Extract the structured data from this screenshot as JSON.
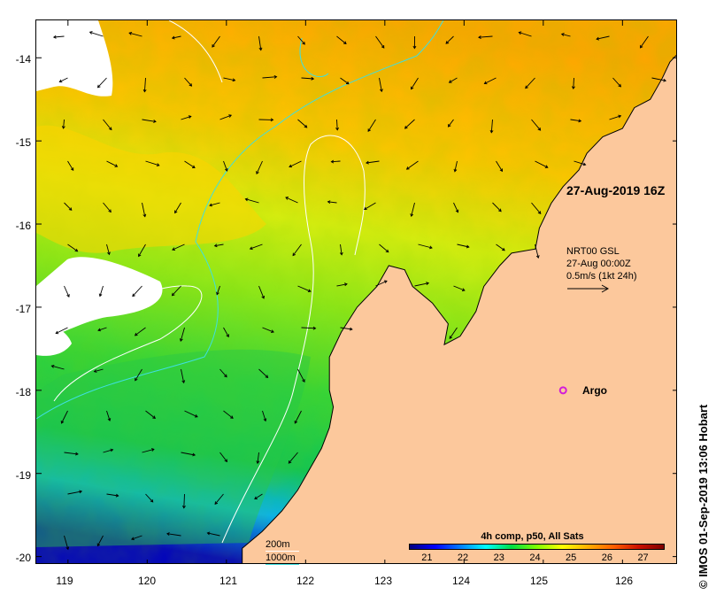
{
  "map": {
    "lon_range": [
      118.6,
      126.7
    ],
    "lat_range": [
      -20.1,
      -13.55
    ],
    "lat_ticks": [
      -14,
      -15,
      -16,
      -17,
      -18,
      -19,
      -20
    ],
    "lat_tick_labels": [
      "-14",
      "-15",
      "-16",
      "-17",
      "-18",
      "-19",
      "-20"
    ],
    "lon_ticks": [
      119,
      120,
      121,
      122,
      123,
      124,
      125,
      126
    ],
    "lon_tick_labels": [
      "119",
      "120",
      "121",
      "122",
      "123",
      "124",
      "125",
      "126"
    ],
    "land_color": "#fcc89c",
    "iso200_color": "#ffffff",
    "iso1000_color": "#3fdfe0",
    "argo_color": "#d21cd9",
    "argo_position": [
      125.25,
      -18.0
    ]
  },
  "annotations": {
    "timestamp": "27-Aug-2019 16Z",
    "current_product": "NRT00 GSL",
    "current_time": "27-Aug 00:00Z",
    "current_scale": "0.5m/s (1kt 24h)",
    "argo_label": "Argo",
    "iso200_label": "200m",
    "iso1000_label": "1000m"
  },
  "colorbar": {
    "title": "4h comp, p50, All Sats",
    "range": [
      20.5,
      27.6
    ],
    "ticks": [
      21,
      22,
      23,
      24,
      25,
      26,
      27
    ],
    "tick_labels": [
      "21",
      "22",
      "23",
      "24",
      "25",
      "26",
      "27"
    ],
    "stops": [
      "#00007f",
      "#0000ff",
      "#007fff",
      "#00ffff",
      "#00dd44",
      "#7fff00",
      "#ffff00",
      "#ffb000",
      "#ff6000",
      "#cc1000",
      "#7f0000"
    ]
  },
  "credit": "© IMOS 01-Sep-2019 13:06 Hobart"
}
